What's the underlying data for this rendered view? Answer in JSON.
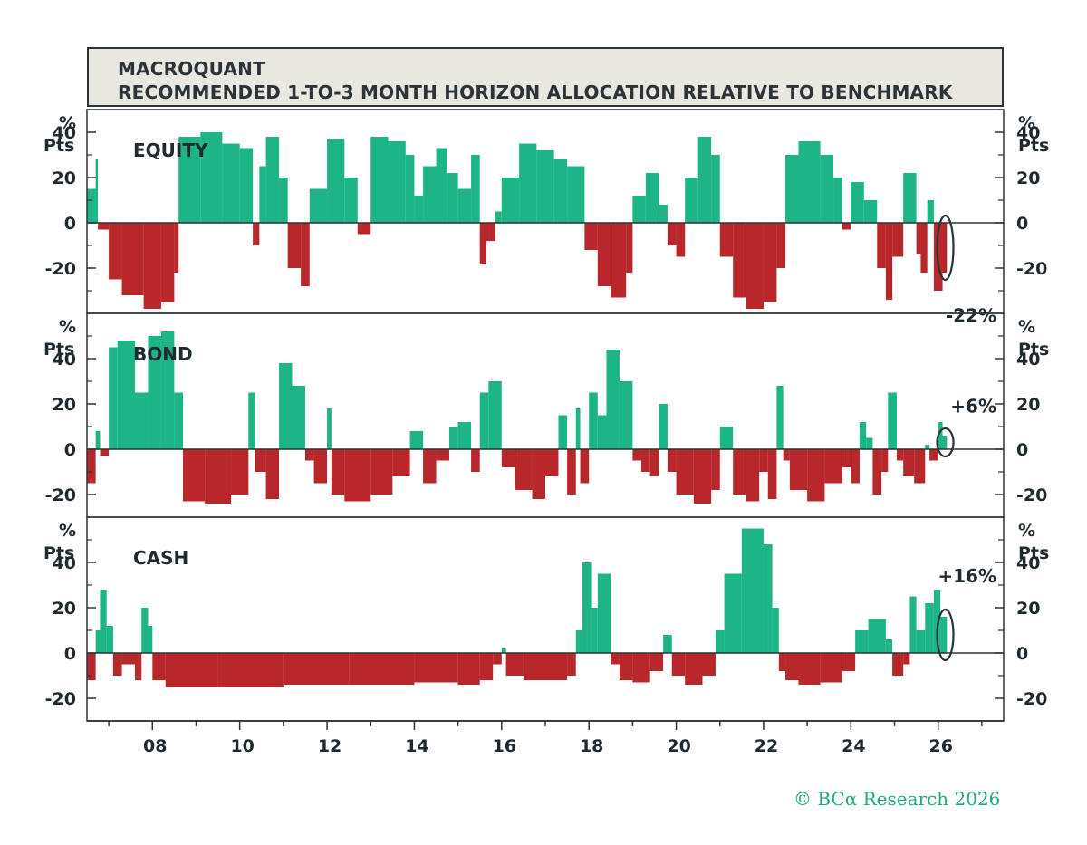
{
  "header": {
    "line1": "MACROQUANT",
    "line2": "RECOMMENDED 1-TO-3 MONTH HORIZON ALLOCATION RELATIVE TO BENCHMARK"
  },
  "footer": {
    "credit": "© BCα Research 2026"
  },
  "colors": {
    "positive": "#1db585",
    "negative": "#b8282a",
    "frame": "#2b3338",
    "text": "#1f2a30"
  },
  "chart_data": [
    {
      "type": "bar",
      "title": "EQUITY",
      "ylabel": "% Pts",
      "ylim": [
        -40,
        50
      ],
      "yticks": [
        -20,
        0,
        20,
        40
      ],
      "xlim": [
        2006.5,
        2027.5
      ],
      "xticks": [
        "08",
        "10",
        "12",
        "14",
        "16",
        "18",
        "20",
        "22",
        "24",
        "26"
      ],
      "xtick_years": [
        2008,
        2010,
        2012,
        2014,
        2016,
        2018,
        2020,
        2022,
        2024,
        2026
      ],
      "annotation": {
        "text": "-22%",
        "x": 2026.1,
        "value": -22
      },
      "segments": [
        [
          2006.5,
          2006.7,
          15
        ],
        [
          2006.7,
          2006.75,
          28
        ],
        [
          2006.75,
          2007.0,
          -3
        ],
        [
          2007.0,
          2007.3,
          -25
        ],
        [
          2007.3,
          2007.8,
          -32
        ],
        [
          2007.8,
          2008.2,
          -38
        ],
        [
          2008.2,
          2008.5,
          -35
        ],
        [
          2008.5,
          2008.6,
          -22
        ],
        [
          2008.6,
          2009.1,
          38
        ],
        [
          2009.1,
          2009.6,
          40
        ],
        [
          2009.6,
          2010.0,
          35
        ],
        [
          2010.0,
          2010.3,
          33
        ],
        [
          2010.3,
          2010.45,
          -10
        ],
        [
          2010.45,
          2010.6,
          25
        ],
        [
          2010.6,
          2010.9,
          38
        ],
        [
          2010.9,
          2011.1,
          20
        ],
        [
          2011.1,
          2011.4,
          -20
        ],
        [
          2011.4,
          2011.6,
          -28
        ],
        [
          2011.6,
          2012.0,
          15
        ],
        [
          2012.0,
          2012.4,
          37
        ],
        [
          2012.4,
          2012.7,
          20
        ],
        [
          2012.7,
          2013.0,
          -5
        ],
        [
          2013.0,
          2013.4,
          38
        ],
        [
          2013.4,
          2013.8,
          36
        ],
        [
          2013.8,
          2014.0,
          30
        ],
        [
          2014.0,
          2014.2,
          12
        ],
        [
          2014.2,
          2014.5,
          25
        ],
        [
          2014.5,
          2014.75,
          33
        ],
        [
          2014.75,
          2015.0,
          22
        ],
        [
          2015.0,
          2015.3,
          15
        ],
        [
          2015.3,
          2015.5,
          30
        ],
        [
          2015.5,
          2015.65,
          -18
        ],
        [
          2015.65,
          2015.85,
          -8
        ],
        [
          2015.85,
          2016.0,
          5
        ],
        [
          2016.0,
          2016.4,
          20
        ],
        [
          2016.4,
          2016.8,
          35
        ],
        [
          2016.8,
          2017.2,
          32
        ],
        [
          2017.2,
          2017.5,
          28
        ],
        [
          2017.5,
          2017.9,
          25
        ],
        [
          2017.9,
          2018.2,
          -12
        ],
        [
          2018.2,
          2018.5,
          -28
        ],
        [
          2018.5,
          2018.85,
          -33
        ],
        [
          2018.85,
          2019.0,
          -22
        ],
        [
          2019.0,
          2019.3,
          12
        ],
        [
          2019.3,
          2019.6,
          22
        ],
        [
          2019.6,
          2019.8,
          8
        ],
        [
          2019.8,
          2020.0,
          -10
        ],
        [
          2020.0,
          2020.2,
          -15
        ],
        [
          2020.2,
          2020.5,
          20
        ],
        [
          2020.5,
          2020.8,
          38
        ],
        [
          2020.8,
          2021.0,
          30
        ],
        [
          2021.0,
          2021.3,
          -15
        ],
        [
          2021.3,
          2021.6,
          -33
        ],
        [
          2021.6,
          2022.0,
          -38
        ],
        [
          2022.0,
          2022.3,
          -35
        ],
        [
          2022.3,
          2022.5,
          -20
        ],
        [
          2022.5,
          2022.8,
          30
        ],
        [
          2022.8,
          2023.3,
          36
        ],
        [
          2023.3,
          2023.6,
          30
        ],
        [
          2023.6,
          2023.8,
          20
        ],
        [
          2023.8,
          2024.0,
          -3
        ],
        [
          2024.0,
          2024.3,
          18
        ],
        [
          2024.3,
          2024.6,
          10
        ],
        [
          2024.6,
          2024.8,
          -20
        ],
        [
          2024.8,
          2024.95,
          -34
        ],
        [
          2024.95,
          2025.2,
          -15
        ],
        [
          2025.2,
          2025.5,
          22
        ],
        [
          2025.5,
          2025.6,
          -14
        ],
        [
          2025.6,
          2025.75,
          -22
        ],
        [
          2025.75,
          2025.9,
          10
        ],
        [
          2025.9,
          2026.1,
          -30
        ],
        [
          2026.1,
          2026.2,
          -22
        ]
      ]
    },
    {
      "type": "bar",
      "title": "BOND",
      "ylabel": "% Pts",
      "ylim": [
        -30,
        60
      ],
      "yticks": [
        -20,
        0,
        20,
        40
      ],
      "xlim": [
        2006.5,
        2027.5
      ],
      "annotation": {
        "text": "+6%",
        "x": 2026.1,
        "value": 6
      },
      "segments": [
        [
          2006.5,
          2006.7,
          -15
        ],
        [
          2006.7,
          2006.8,
          8
        ],
        [
          2006.8,
          2007.0,
          -3
        ],
        [
          2007.0,
          2007.2,
          45
        ],
        [
          2007.2,
          2007.6,
          48
        ],
        [
          2007.6,
          2007.9,
          25
        ],
        [
          2007.9,
          2008.2,
          50
        ],
        [
          2008.2,
          2008.5,
          52
        ],
        [
          2008.5,
          2008.7,
          25
        ],
        [
          2008.7,
          2009.2,
          -23
        ],
        [
          2009.2,
          2009.8,
          -24
        ],
        [
          2009.8,
          2010.2,
          -20
        ],
        [
          2010.2,
          2010.35,
          25
        ],
        [
          2010.35,
          2010.6,
          -10
        ],
        [
          2010.6,
          2010.9,
          -22
        ],
        [
          2010.9,
          2011.2,
          38
        ],
        [
          2011.2,
          2011.5,
          28
        ],
        [
          2011.5,
          2011.7,
          -5
        ],
        [
          2011.7,
          2012.0,
          -15
        ],
        [
          2012.0,
          2012.1,
          18
        ],
        [
          2012.1,
          2012.4,
          -20
        ],
        [
          2012.4,
          2013.0,
          -23
        ],
        [
          2013.0,
          2013.5,
          -20
        ],
        [
          2013.5,
          2013.9,
          -12
        ],
        [
          2013.9,
          2014.2,
          8
        ],
        [
          2014.2,
          2014.5,
          -15
        ],
        [
          2014.5,
          2014.8,
          -5
        ],
        [
          2014.8,
          2015.0,
          10
        ],
        [
          2015.0,
          2015.3,
          12
        ],
        [
          2015.3,
          2015.5,
          -10
        ],
        [
          2015.5,
          2015.7,
          25
        ],
        [
          2015.7,
          2016.0,
          30
        ],
        [
          2016.0,
          2016.3,
          -8
        ],
        [
          2016.3,
          2016.7,
          -18
        ],
        [
          2016.7,
          2017.0,
          -22
        ],
        [
          2017.0,
          2017.3,
          -12
        ],
        [
          2017.3,
          2017.5,
          15
        ],
        [
          2017.5,
          2017.7,
          -20
        ],
        [
          2017.7,
          2017.8,
          18
        ],
        [
          2017.8,
          2018.0,
          -15
        ],
        [
          2018.0,
          2018.2,
          25
        ],
        [
          2018.2,
          2018.4,
          15
        ],
        [
          2018.4,
          2018.7,
          44
        ],
        [
          2018.7,
          2019.0,
          30
        ],
        [
          2019.0,
          2019.2,
          -5
        ],
        [
          2019.2,
          2019.4,
          -10
        ],
        [
          2019.4,
          2019.6,
          -12
        ],
        [
          2019.6,
          2019.8,
          20
        ],
        [
          2019.8,
          2020.0,
          -10
        ],
        [
          2020.0,
          2020.4,
          -20
        ],
        [
          2020.4,
          2020.8,
          -24
        ],
        [
          2020.8,
          2021.0,
          -18
        ],
        [
          2021.0,
          2021.3,
          10
        ],
        [
          2021.3,
          2021.6,
          -20
        ],
        [
          2021.6,
          2021.9,
          -23
        ],
        [
          2021.9,
          2022.1,
          -10
        ],
        [
          2022.1,
          2022.3,
          -22
        ],
        [
          2022.3,
          2022.45,
          28
        ],
        [
          2022.45,
          2022.6,
          -5
        ],
        [
          2022.6,
          2023.0,
          -18
        ],
        [
          2023.0,
          2023.4,
          -23
        ],
        [
          2023.4,
          2023.8,
          -15
        ],
        [
          2023.8,
          2024.0,
          -8
        ],
        [
          2024.0,
          2024.2,
          -15
        ],
        [
          2024.2,
          2024.35,
          12
        ],
        [
          2024.35,
          2024.5,
          5
        ],
        [
          2024.5,
          2024.7,
          -20
        ],
        [
          2024.7,
          2024.85,
          -10
        ],
        [
          2024.85,
          2025.05,
          25
        ],
        [
          2025.05,
          2025.2,
          -5
        ],
        [
          2025.2,
          2025.45,
          -12
        ],
        [
          2025.45,
          2025.7,
          -15
        ],
        [
          2025.7,
          2025.8,
          2
        ],
        [
          2025.8,
          2026.0,
          -5
        ],
        [
          2026.0,
          2026.1,
          12
        ],
        [
          2026.1,
          2026.2,
          6
        ]
      ]
    },
    {
      "type": "bar",
      "title": "CASH",
      "ylabel": "% Pts",
      "ylim": [
        -30,
        60
      ],
      "yticks": [
        -20,
        0,
        20,
        40
      ],
      "xlim": [
        2006.5,
        2027.5
      ],
      "annotation": {
        "text": "+16%",
        "x": 2026.1,
        "value": 16
      },
      "segments": [
        [
          2006.5,
          2006.7,
          -12
        ],
        [
          2006.7,
          2006.8,
          10
        ],
        [
          2006.8,
          2006.95,
          28
        ],
        [
          2006.95,
          2007.1,
          12
        ],
        [
          2007.1,
          2007.3,
          -10
        ],
        [
          2007.3,
          2007.6,
          -5
        ],
        [
          2007.6,
          2007.75,
          -12
        ],
        [
          2007.75,
          2007.9,
          20
        ],
        [
          2007.9,
          2008.0,
          12
        ],
        [
          2008.0,
          2008.3,
          -12
        ],
        [
          2008.3,
          2009.5,
          -15
        ],
        [
          2009.5,
          2011.0,
          -15
        ],
        [
          2011.0,
          2012.5,
          -14
        ],
        [
          2012.5,
          2014.0,
          -14
        ],
        [
          2014.0,
          2015.0,
          -13
        ],
        [
          2015.0,
          2015.5,
          -14
        ],
        [
          2015.5,
          2015.8,
          -12
        ],
        [
          2015.8,
          2016.0,
          -5
        ],
        [
          2016.0,
          2016.1,
          2
        ],
        [
          2016.1,
          2016.5,
          -10
        ],
        [
          2016.5,
          2017.0,
          -12
        ],
        [
          2017.0,
          2017.5,
          -12
        ],
        [
          2017.5,
          2017.7,
          -10
        ],
        [
          2017.7,
          2017.85,
          10
        ],
        [
          2017.85,
          2018.05,
          40
        ],
        [
          2018.05,
          2018.2,
          20
        ],
        [
          2018.2,
          2018.5,
          35
        ],
        [
          2018.5,
          2018.7,
          -5
        ],
        [
          2018.7,
          2019.0,
          -12
        ],
        [
          2019.0,
          2019.4,
          -13
        ],
        [
          2019.4,
          2019.7,
          -8
        ],
        [
          2019.7,
          2019.9,
          8
        ],
        [
          2019.9,
          2020.2,
          -10
        ],
        [
          2020.2,
          2020.6,
          -14
        ],
        [
          2020.6,
          2020.9,
          -10
        ],
        [
          2020.9,
          2021.1,
          10
        ],
        [
          2021.1,
          2021.5,
          35
        ],
        [
          2021.5,
          2022.0,
          55
        ],
        [
          2022.0,
          2022.2,
          48
        ],
        [
          2022.2,
          2022.35,
          20
        ],
        [
          2022.35,
          2022.5,
          -8
        ],
        [
          2022.5,
          2022.8,
          -12
        ],
        [
          2022.8,
          2023.3,
          -14
        ],
        [
          2023.3,
          2023.8,
          -13
        ],
        [
          2023.8,
          2024.1,
          -8
        ],
        [
          2024.1,
          2024.4,
          10
        ],
        [
          2024.4,
          2024.8,
          15
        ],
        [
          2024.8,
          2024.95,
          6
        ],
        [
          2024.95,
          2025.2,
          -10
        ],
        [
          2025.2,
          2025.35,
          -5
        ],
        [
          2025.35,
          2025.5,
          25
        ],
        [
          2025.5,
          2025.7,
          10
        ],
        [
          2025.7,
          2025.9,
          22
        ],
        [
          2025.9,
          2026.05,
          28
        ],
        [
          2026.05,
          2026.2,
          16
        ]
      ]
    }
  ]
}
